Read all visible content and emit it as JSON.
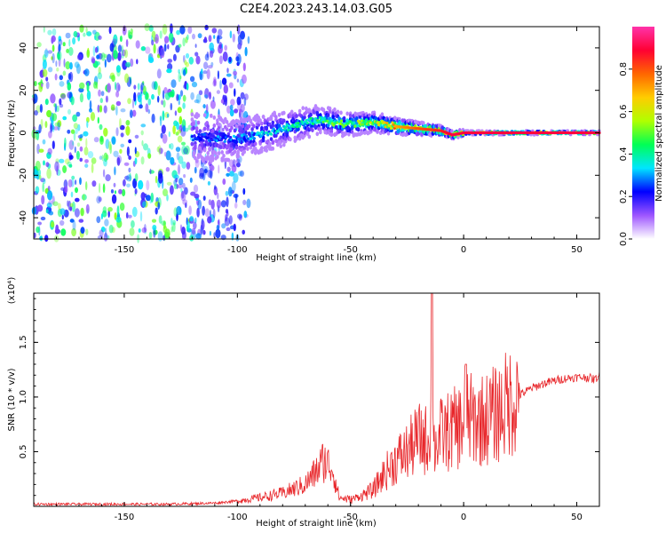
{
  "title": "C2E4.2023.243.14.03.G05",
  "chart_data": [
    {
      "type": "heatmap",
      "xlabel": "Height of straight line (km)",
      "ylabel": "Frequency (Hz)",
      "xlim": [
        -190,
        60
      ],
      "ylim": [
        -50,
        50
      ],
      "xticks": [
        -150,
        -100,
        -50,
        0,
        50
      ],
      "yticks": [
        -40,
        -20,
        0,
        20,
        40
      ],
      "colorbar": {
        "label": "Normalized spectral amplitude",
        "range": [
          0,
          1
        ],
        "ticks": [
          0.0,
          0.2,
          0.4,
          0.6,
          0.8
        ],
        "colormap": [
          "#ffffff",
          "#9e56ff",
          "#0000ff",
          "#00e5ff",
          "#00ff55",
          "#b0ff00",
          "#ffcc00",
          "#ff6600",
          "#ff0033",
          "#ff33aa"
        ]
      },
      "ridge": {
        "x": [
          -120,
          -100,
          -80,
          -65,
          -50,
          -40,
          -30,
          -20,
          -10,
          -5,
          0,
          10,
          30,
          60
        ],
        "freq": [
          -2,
          -3,
          2,
          6,
          4,
          5,
          3,
          2,
          1,
          -1,
          0,
          0,
          0,
          0
        ],
        "amplitude": [
          0.25,
          0.28,
          0.35,
          0.4,
          0.5,
          0.55,
          0.7,
          0.8,
          0.85,
          0.9,
          0.9,
          0.9,
          0.9,
          0.9
        ]
      },
      "noise_region_x": [
        -190,
        -105
      ]
    },
    {
      "type": "line",
      "xlabel": "Height of straight line (km)",
      "ylabel": "SNR (10 * v/v)",
      "y_multiplier": "(x10⁴)",
      "xlim": [
        -190,
        60
      ],
      "ylim": [
        0,
        1.95
      ],
      "xticks": [
        -150,
        -100,
        -50,
        0,
        50
      ],
      "yticks": [
        0.5,
        1.0,
        1.5
      ],
      "line_color": "#e8262a",
      "series": [
        {
          "x": [
            -190,
            -170,
            -150,
            -130,
            -110,
            -100,
            -90,
            -80,
            -75,
            -70,
            -65,
            -62,
            -58,
            -55,
            -50,
            -45,
            -40,
            -35,
            -30,
            -25,
            -20,
            -15,
            -14,
            -13,
            -10,
            -5,
            0,
            1,
            2,
            5,
            10,
            15,
            20,
            25,
            30,
            35,
            40,
            45,
            50,
            55,
            58,
            60
          ],
          "y": [
            0.02,
            0.02,
            0.02,
            0.02,
            0.03,
            0.05,
            0.08,
            0.12,
            0.16,
            0.2,
            0.32,
            0.42,
            0.35,
            0.08,
            0.06,
            0.1,
            0.15,
            0.3,
            0.42,
            0.5,
            0.62,
            0.6,
            1.95,
            0.55,
            0.65,
            0.7,
            0.75,
            1.3,
            0.8,
            0.78,
            0.8,
            0.85,
            0.95,
            1.02,
            1.08,
            1.12,
            1.15,
            1.17,
            1.18,
            1.18,
            1.16,
            1.2
          ]
        }
      ]
    }
  ]
}
